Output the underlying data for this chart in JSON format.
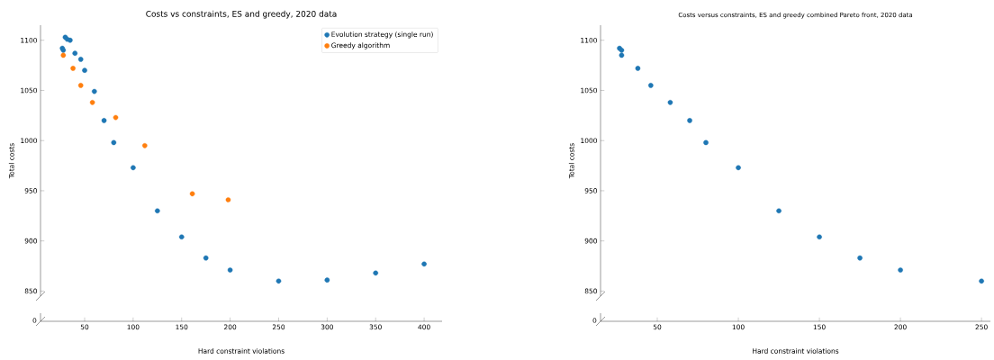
{
  "chart_data": [
    {
      "type": "scatter",
      "title": "Costs vs constraints, ES and greedy, 2020 data",
      "xlabel": "Hard constraint violations",
      "ylabel": "Total costs",
      "xlim": [
        4.5,
        418.5
      ],
      "ylim": [
        845,
        1115
      ],
      "xticks": [
        50,
        100,
        150,
        200,
        250,
        300,
        350,
        400
      ],
      "yticks": [
        850,
        900,
        950,
        1000,
        1050,
        1100
      ],
      "annotations": [
        "0"
      ],
      "legend": "top right",
      "marker": "circle",
      "series": [
        {
          "name": "Evolution strategy (single run)",
          "color": "#1f77b4",
          "x": [
            27,
            28,
            30,
            32,
            35,
            40,
            46,
            50,
            60,
            70,
            80,
            100,
            125,
            150,
            175,
            200,
            250,
            300,
            350,
            400
          ],
          "values": [
            1092,
            1090,
            1103,
            1101,
            1100,
            1087,
            1081,
            1070,
            1049,
            1020,
            998,
            973,
            930,
            904,
            883,
            871,
            860,
            861,
            868,
            877
          ]
        },
        {
          "name": "Greedy algorithm",
          "color": "#ff7f0e",
          "x": [
            28,
            38,
            46,
            58,
            82,
            112,
            161,
            198
          ],
          "values": [
            1085,
            1072,
            1055,
            1038,
            1023,
            995,
            947,
            941
          ]
        }
      ]
    },
    {
      "type": "scatter",
      "title": "Costs versus constraints, ES and greedy combined Pareto front, 2020 data",
      "xlabel": "Hard constraint violations",
      "ylabel": "Total costs",
      "xlim": [
        15,
        255.5
      ],
      "ylim": [
        845,
        1115
      ],
      "xticks": [
        50,
        100,
        150,
        200,
        250
      ],
      "yticks": [
        850,
        900,
        950,
        1000,
        1050,
        1100
      ],
      "annotations": [
        "0"
      ],
      "marker": "circle",
      "series": [
        {
          "color": "#1f77b4",
          "x": [
            26.7,
            28,
            28,
            38,
            46,
            58,
            70,
            80,
            100,
            125,
            150,
            175,
            200,
            250
          ],
          "values": [
            1092,
            1090,
            1085,
            1072,
            1055,
            1038,
            1020,
            998,
            973,
            930,
            904,
            883,
            871,
            860
          ]
        }
      ]
    }
  ]
}
